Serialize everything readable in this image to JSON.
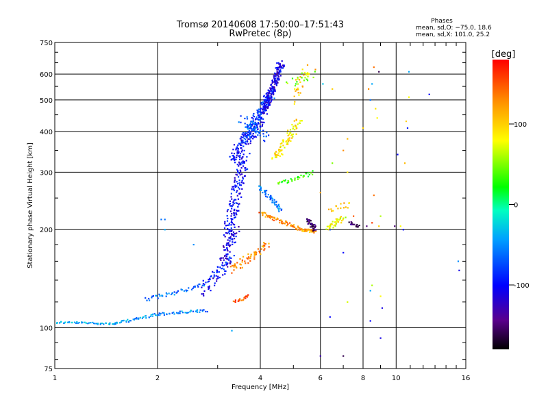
{
  "chart_data": {
    "type": "scatter",
    "title": "Tromsø 20140608 17:50:00–17:51:43",
    "subtitle": "RwPretec (8p)",
    "xlabel": "Frequency [MHz]",
    "ylabel": "Stationary phase Virtual Height [km]",
    "x_scale": "log",
    "y_scale": "log",
    "xlim": [
      1,
      16
    ],
    "ylim": [
      75,
      750
    ],
    "x_ticks": [
      1,
      2,
      4,
      6,
      8,
      10,
      16
    ],
    "y_ticks": [
      75,
      100,
      200,
      300,
      400,
      500,
      600,
      750
    ],
    "grid": true,
    "phases_info": {
      "heading": "Phases",
      "line_o": "mean, sd,O: −75.0, 18.6",
      "line_x": "mean, sd,X: 101.0, 25.2"
    },
    "colorbar": {
      "label": "[deg]",
      "range": [
        -180,
        180
      ],
      "ticks": [
        100,
        0,
        -100
      ]
    },
    "traces": [
      {
        "f1": 1.0,
        "f2": 1.5,
        "h1": 104,
        "h2": 103,
        "n": 45,
        "phase": -40,
        "spread": 1.5
      },
      {
        "f1": 1.5,
        "f2": 2.0,
        "h1": 103,
        "h2": 110,
        "n": 40,
        "phase": -50,
        "spread": 2.0
      },
      {
        "f1": 2.0,
        "f2": 2.8,
        "h1": 110,
        "h2": 113,
        "n": 40,
        "phase": -55,
        "spread": 2.0
      },
      {
        "f1": 1.85,
        "f2": 2.7,
        "h1": 122,
        "h2": 135,
        "n": 45,
        "phase": -60,
        "spread": 3.0
      },
      {
        "f1": 2.7,
        "f2": 3.3,
        "h1": 135,
        "h2": 165,
        "n": 40,
        "phase": -90,
        "spread": 4.0
      },
      {
        "f1": 2.7,
        "f2": 3.3,
        "h1": 125,
        "h2": 160,
        "n": 30,
        "phase": -110,
        "spread": 4.0
      },
      {
        "f1": 3.1,
        "f2": 3.4,
        "h1": 160,
        "h2": 200,
        "n": 60,
        "phase": -110,
        "spread": 6.0
      },
      {
        "f1": 3.2,
        "f2": 3.6,
        "h1": 190,
        "h2": 340,
        "n": 160,
        "phase": -100,
        "spread": 8.0
      },
      {
        "f1": 3.3,
        "f2": 4.0,
        "h1": 330,
        "h2": 430,
        "n": 120,
        "phase": -100,
        "spread": 7.0
      },
      {
        "f1": 3.6,
        "f2": 4.3,
        "h1": 380,
        "h2": 520,
        "n": 150,
        "phase": -80,
        "spread": 6.0
      },
      {
        "f1": 4.1,
        "f2": 4.6,
        "h1": 460,
        "h2": 650,
        "n": 180,
        "phase": -110,
        "spread": 5.0
      },
      {
        "f1": 3.5,
        "f2": 4.2,
        "h1": 440,
        "h2": 380,
        "n": 40,
        "phase": -60,
        "spread": 6.0
      },
      {
        "f1": 4.4,
        "f2": 5.2,
        "h1": 330,
        "h2": 430,
        "n": 80,
        "phase": 90,
        "spread": 6.0
      },
      {
        "f1": 5.0,
        "f2": 5.5,
        "h1": 500,
        "h2": 620,
        "n": 25,
        "phase": 100,
        "spread": 8.0
      },
      {
        "f1": 4.5,
        "f2": 5.7,
        "h1": 275,
        "h2": 300,
        "n": 35,
        "phase": 30,
        "spread": 3.0
      },
      {
        "f1": 4.0,
        "f2": 4.6,
        "h1": 270,
        "h2": 230,
        "n": 50,
        "phase": -60,
        "spread": 3.0
      },
      {
        "f1": 4.0,
        "f2": 5.3,
        "h1": 225,
        "h2": 200,
        "n": 70,
        "phase": 130,
        "spread": 2.5
      },
      {
        "f1": 5.3,
        "f2": 5.8,
        "h1": 200,
        "h2": 197,
        "n": 40,
        "phase": 120,
        "spread": 2.0
      },
      {
        "f1": 5.5,
        "f2": 5.8,
        "h1": 215,
        "h2": 200,
        "n": 35,
        "phase": -150,
        "spread": 3.0
      },
      {
        "f1": 3.3,
        "f2": 4.2,
        "h1": 150,
        "h2": 180,
        "n": 60,
        "phase": 130,
        "spread": 5.0
      },
      {
        "f1": 3.35,
        "f2": 3.7,
        "h1": 120,
        "h2": 125,
        "n": 20,
        "phase": 150,
        "spread": 2.0
      },
      {
        "f1": 6.3,
        "f2": 7.0,
        "h1": 200,
        "h2": 220,
        "n": 40,
        "phase": 80,
        "spread": 4.0
      },
      {
        "f1": 6.4,
        "f2": 7.3,
        "h1": 230,
        "h2": 240,
        "n": 15,
        "phase": 110,
        "spread": 4.0
      },
      {
        "f1": 7.3,
        "f2": 7.8,
        "h1": 210,
        "h2": 205,
        "n": 15,
        "phase": -150,
        "spread": 3.0
      },
      {
        "f1": 4.9,
        "f2": 5.7,
        "h1": 560,
        "h2": 600,
        "n": 20,
        "phase": 50,
        "spread": 6.0
      }
    ],
    "scatter": [
      {
        "x": 2.05,
        "y": 215,
        "phase": -60
      },
      {
        "x": 2.1,
        "y": 215,
        "phase": -60
      },
      {
        "x": 2.1,
        "y": 200,
        "phase": -40
      },
      {
        "x": 2.55,
        "y": 180,
        "phase": -50
      },
      {
        "x": 3.3,
        "y": 98,
        "phase": -40
      },
      {
        "x": 5.5,
        "y": 640,
        "phase": 120
      },
      {
        "x": 5.8,
        "y": 620,
        "phase": 130
      },
      {
        "x": 6.1,
        "y": 560,
        "phase": -30
      },
      {
        "x": 6.5,
        "y": 540,
        "phase": 100
      },
      {
        "x": 7.2,
        "y": 380,
        "phase": 110
      },
      {
        "x": 7.0,
        "y": 350,
        "phase": 130
      },
      {
        "x": 6.5,
        "y": 320,
        "phase": 50
      },
      {
        "x": 6.0,
        "y": 260,
        "phase": 120
      },
      {
        "x": 7.2,
        "y": 300,
        "phase": 90
      },
      {
        "x": 7.5,
        "y": 220,
        "phase": 150
      },
      {
        "x": 8.0,
        "y": 410,
        "phase": 100
      },
      {
        "x": 8.3,
        "y": 540,
        "phase": 130
      },
      {
        "x": 8.6,
        "y": 630,
        "phase": 140
      },
      {
        "x": 8.9,
        "y": 610,
        "phase": -160
      },
      {
        "x": 8.5,
        "y": 560,
        "phase": -40
      },
      {
        "x": 8.4,
        "y": 500,
        "phase": -60
      },
      {
        "x": 8.8,
        "y": 440,
        "phase": 80
      },
      {
        "x": 8.7,
        "y": 470,
        "phase": 90
      },
      {
        "x": 8.5,
        "y": 210,
        "phase": 160
      },
      {
        "x": 8.6,
        "y": 255,
        "phase": 140
      },
      {
        "x": 8.9,
        "y": 205,
        "phase": 100
      },
      {
        "x": 9.0,
        "y": 220,
        "phase": 60
      },
      {
        "x": 8.2,
        "y": 205,
        "phase": -150
      },
      {
        "x": 9.9,
        "y": 205,
        "phase": -150
      },
      {
        "x": 10.3,
        "y": 205,
        "phase": 80
      },
      {
        "x": 10.5,
        "y": 200,
        "phase": -100
      },
      {
        "x": 10.1,
        "y": 340,
        "phase": -100
      },
      {
        "x": 10.6,
        "y": 320,
        "phase": 110
      },
      {
        "x": 10.7,
        "y": 430,
        "phase": 100
      },
      {
        "x": 10.8,
        "y": 410,
        "phase": -90
      },
      {
        "x": 10.9,
        "y": 610,
        "phase": -40
      },
      {
        "x": 10.9,
        "y": 510,
        "phase": 80
      },
      {
        "x": 12.5,
        "y": 520,
        "phase": -100
      },
      {
        "x": 15.2,
        "y": 160,
        "phase": -50
      },
      {
        "x": 15.3,
        "y": 150,
        "phase": -110
      },
      {
        "x": 6.4,
        "y": 108,
        "phase": -100
      },
      {
        "x": 6.0,
        "y": 82,
        "phase": -130
      },
      {
        "x": 7.0,
        "y": 82,
        "phase": -160
      },
      {
        "x": 8.4,
        "y": 105,
        "phase": -100
      },
      {
        "x": 8.4,
        "y": 130,
        "phase": -40
      },
      {
        "x": 8.5,
        "y": 135,
        "phase": 60
      },
      {
        "x": 9.0,
        "y": 125,
        "phase": 80
      },
      {
        "x": 9.1,
        "y": 115,
        "phase": -110
      },
      {
        "x": 9.0,
        "y": 93,
        "phase": -110
      },
      {
        "x": 7.2,
        "y": 120,
        "phase": 70
      },
      {
        "x": 7.0,
        "y": 170,
        "phase": -100
      },
      {
        "x": 6.4,
        "y": 200,
        "phase": -70
      }
    ]
  }
}
